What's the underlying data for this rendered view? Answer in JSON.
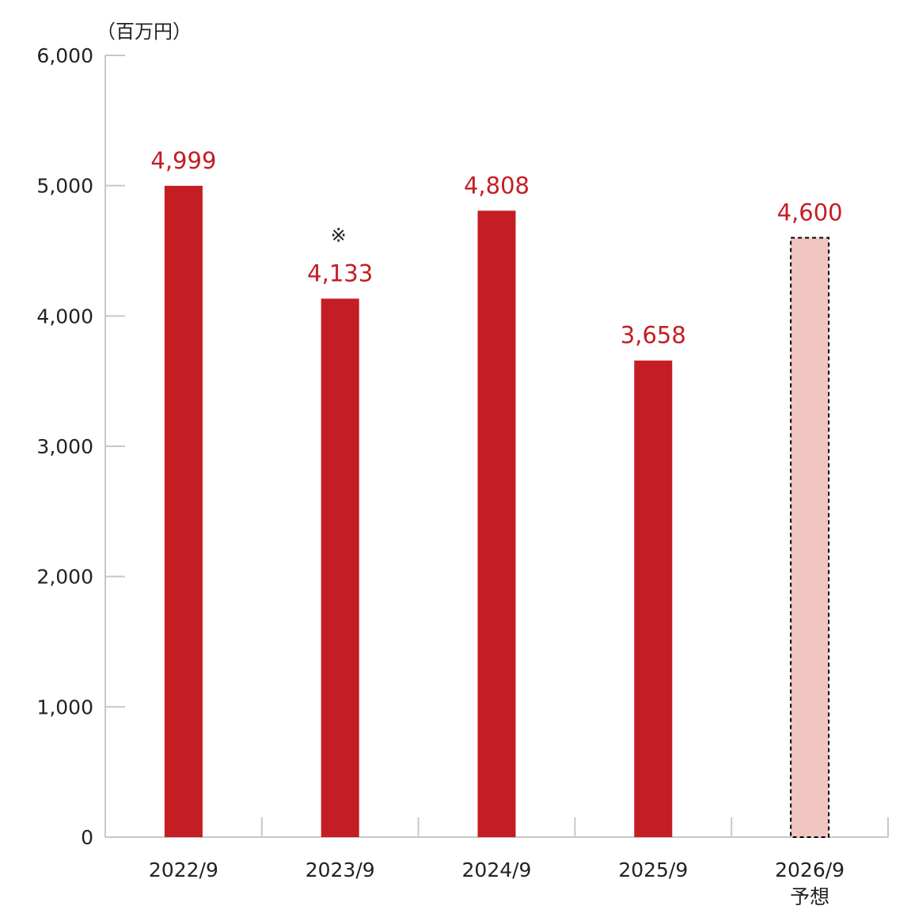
{
  "chart_data": {
    "type": "bar",
    "unit_label": "（百万円）",
    "categories": [
      "2022/9",
      "2023/9",
      "2024/9",
      "2025/9",
      "2026/9"
    ],
    "category_sublabels": [
      "",
      "",
      "",
      "",
      "予想"
    ],
    "values": [
      4999,
      4133,
      4808,
      3658,
      4600
    ],
    "value_labels": [
      "4,999",
      "4,133",
      "4,808",
      "3,658",
      "4,600"
    ],
    "forecast": [
      false,
      false,
      false,
      false,
      true
    ],
    "annotations": [
      "",
      "※",
      "",
      "",
      ""
    ],
    "yticks": [
      0,
      1000,
      2000,
      3000,
      4000,
      5000,
      6000
    ],
    "ytick_labels": [
      "0",
      "1,000",
      "2,000",
      "3,000",
      "4,000",
      "5,000",
      "6,000"
    ],
    "ylim": [
      0,
      6000
    ],
    "title": "",
    "xlabel": "",
    "ylabel": "",
    "colors": {
      "bar": "#c51d24",
      "forecast_fill": "#f1c5c0",
      "forecast_border": "#000000",
      "label": "#c51d24",
      "axis": "#c8c8c8",
      "text": "#222222"
    }
  }
}
